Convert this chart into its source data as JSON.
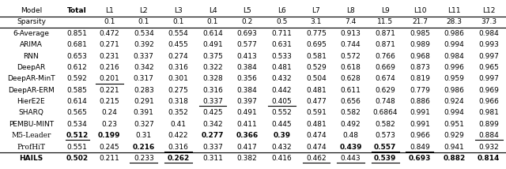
{
  "columns": [
    "Model",
    "Total",
    "L1",
    "L2",
    "L3",
    "L4",
    "L5",
    "L6",
    "L7",
    "L8",
    "L9",
    "L10",
    "L11",
    "L12"
  ],
  "sparsity_row": [
    "Sparsity",
    "",
    "0.1",
    "0.1",
    "0.1",
    "0.1",
    "0.2",
    "0.5",
    "3.1",
    "7.4",
    "11.5",
    "21.7",
    "28.3",
    "37.3"
  ],
  "rows": [
    [
      "6-Average",
      "0.851",
      "0.472",
      "0.534",
      "0.554",
      "0.614",
      "0.693",
      "0.711",
      "0.775",
      "0.913",
      "0.871",
      "0.985",
      "0.986",
      "0.984"
    ],
    [
      "ARIMA",
      "0.681",
      "0.271",
      "0.392",
      "0.455",
      "0.491",
      "0.577",
      "0.631",
      "0.695",
      "0.744",
      "0.871",
      "0.989",
      "0.994",
      "0.993"
    ],
    [
      "RNN",
      "0.653",
      "0.231",
      "0.337",
      "0.274",
      "0.375",
      "0.413",
      "0.533",
      "0.581",
      "0.572",
      "0.766",
      "0.968",
      "0.984",
      "0.997"
    ],
    [
      "DeepAR",
      "0.612",
      "0.216",
      "0.342",
      "0.316",
      "0.322",
      "0.384",
      "0.481",
      "0.529",
      "0.618",
      "0.669",
      "0.873",
      "0.996",
      "0.965"
    ],
    [
      "DeepAR-MinT",
      "0.592",
      "0.201",
      "0.317",
      "0.301",
      "0.328",
      "0.356",
      "0.432",
      "0.504",
      "0.628",
      "0.674",
      "0.819",
      "0.959",
      "0.997"
    ],
    [
      "DeepAR-ERM",
      "0.585",
      "0.221",
      "0.283",
      "0.275",
      "0.316",
      "0.384",
      "0.442",
      "0.481",
      "0.611",
      "0.629",
      "0.779",
      "0.986",
      "0.969"
    ],
    [
      "HierE2E",
      "0.614",
      "0.215",
      "0.291",
      "0.318",
      "0.337",
      "0.397",
      "0.405",
      "0.477",
      "0.656",
      "0.748",
      "0.886",
      "0.924",
      "0.966"
    ],
    [
      "SHARQ",
      "0.565",
      "0.24",
      "0.391",
      "0.352",
      "0.425",
      "0.491",
      "0.552",
      "0.591",
      "0.582",
      "0.6864",
      "0.991",
      "0.994",
      "0.981"
    ],
    [
      "PEMBU-MINT",
      "0.534",
      "0.23",
      "0.327",
      "0.41",
      "0.342",
      "0.411",
      "0.445",
      "0.481",
      "0.492",
      "0.582",
      "0.991",
      "0.951",
      "0.899"
    ],
    [
      "M5-Leader",
      "0.512",
      "0.199",
      "0.31",
      "0.422",
      "0.277",
      "0.366",
      "0.39",
      "0.474",
      "0.48",
      "0.573",
      "0.966",
      "0.929",
      "0.884"
    ],
    [
      "ProfHiT",
      "0.551",
      "0.245",
      "0.216",
      "0.316",
      "0.337",
      "0.417",
      "0.432",
      "0.474",
      "0.439",
      "0.557",
      "0.849",
      "0.941",
      "0.932"
    ],
    [
      "HAILS",
      "0.502",
      "0.211",
      "0.233",
      "0.262",
      "0.311",
      "0.382",
      "0.416",
      "0.462",
      "0.443",
      "0.539",
      "0.693",
      "0.882",
      "0.814"
    ]
  ],
  "bold_cells": {
    "M5-Leader": [
      "Total",
      "L1",
      "L4",
      "L5",
      "L6"
    ],
    "ProfHiT": [
      "L2",
      "L8",
      "L9"
    ],
    "HAILS": [
      "Total",
      "L3",
      "L9",
      "L10",
      "L11",
      "L12"
    ]
  },
  "underline_cells": {
    "DeepAR-MinT": [
      "L1"
    ],
    "HierE2E": [
      "L4",
      "L6"
    ],
    "M5-Leader": [
      "Total",
      "L12"
    ],
    "ProfHiT": [
      "L3",
      "L9",
      "L10"
    ],
    "HAILS": [
      "L2",
      "L3",
      "L7",
      "L8",
      "L9"
    ]
  },
  "figsize": [
    6.4,
    2.14
  ],
  "dpi": 100
}
